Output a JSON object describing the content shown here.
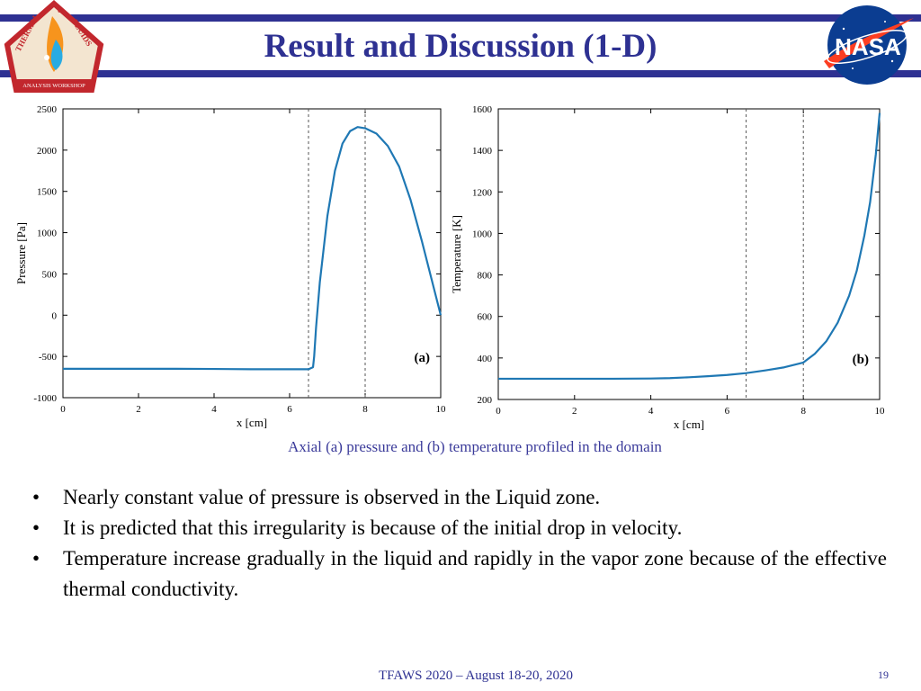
{
  "slide": {
    "title": "Result and Discussion (1-D)",
    "caption": "Axial (a) pressure and (b) temperature profiled in the domain",
    "bullets": [
      "Nearly constant value of pressure is observed in the Liquid zone.",
      "It is predicted that this irregularity is because of the initial drop in velocity.",
      "Temperature increase gradually in the liquid and rapidly in the vapor zone because of the effective thermal conductivity."
    ],
    "footer": "TFAWS 2020 – August 18-20, 2020",
    "page_number": "19"
  },
  "logos": {
    "left": {
      "name": "tfaws-logo",
      "text_top": "THERMAL",
      "text_and": "&",
      "text_right": "FLUIDS",
      "text_bottom": "ANALYSIS WORKSHOP",
      "colors": {
        "border": "#c2272d",
        "fill": "#f3e5d0",
        "flame": "#f7941d",
        "drop": "#29abe2"
      }
    },
    "right": {
      "name": "nasa-meatball-logo",
      "text": "NASA",
      "colors": {
        "blue": "#0b3d91",
        "red": "#fc3d21"
      }
    }
  },
  "colors": {
    "accent": "#2e3192",
    "curve": "#1f78b4",
    "grid_dash": "#555555"
  },
  "chart_data": [
    {
      "type": "line",
      "panel_label": "(a)",
      "xlabel": "x [cm]",
      "ylabel": "Pressure [Pa]",
      "xlim": [
        0,
        10
      ],
      "ylim": [
        -1000,
        2500
      ],
      "xticks": [
        0,
        2,
        4,
        6,
        8,
        10
      ],
      "yticks": [
        -1000,
        -500,
        0,
        500,
        1000,
        1500,
        2000,
        2500
      ],
      "vlines": [
        6.5,
        8
      ],
      "series": [
        {
          "x": [
            0,
            1,
            2,
            3,
            4,
            5,
            6,
            6.5,
            6.62,
            6.65,
            6.7,
            6.8,
            7.0,
            7.2,
            7.4,
            7.6,
            7.8,
            8.0,
            8.3,
            8.6,
            8.9,
            9.2,
            9.5,
            9.75,
            10
          ],
          "y": [
            -650,
            -650,
            -650,
            -650,
            -652,
            -655,
            -655,
            -655,
            -630,
            -500,
            -150,
            400,
            1200,
            1750,
            2080,
            2230,
            2280,
            2265,
            2200,
            2050,
            1800,
            1400,
            900,
            450,
            0
          ]
        }
      ]
    },
    {
      "type": "line",
      "panel_label": "(b)",
      "xlabel": "x [cm]",
      "ylabel": "Temperature [K]",
      "xlim": [
        0,
        10
      ],
      "ylim": [
        200,
        1600
      ],
      "xticks": [
        0,
        2,
        4,
        6,
        8,
        10
      ],
      "yticks": [
        200,
        400,
        600,
        800,
        1000,
        1200,
        1400,
        1600
      ],
      "vlines": [
        6.5,
        8
      ],
      "series": [
        {
          "x": [
            0,
            1,
            2,
            3,
            4,
            4.5,
            5,
            5.5,
            6,
            6.5,
            7,
            7.5,
            8,
            8.3,
            8.6,
            8.9,
            9.2,
            9.4,
            9.6,
            9.75,
            9.9,
            10
          ],
          "y": [
            300,
            300,
            300,
            300,
            301,
            303,
            307,
            312,
            318,
            327,
            340,
            355,
            378,
            420,
            480,
            570,
            700,
            820,
            990,
            1150,
            1380,
            1580
          ]
        }
      ]
    }
  ]
}
